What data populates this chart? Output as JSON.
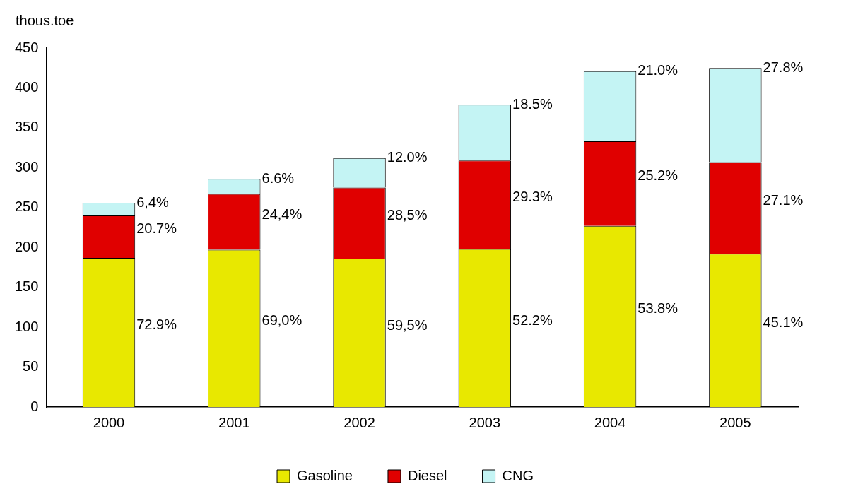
{
  "chart_data": {
    "type": "bar",
    "stacked": true,
    "ylabel": "thous.toe",
    "categories": [
      "2000",
      "2001",
      "2002",
      "2003",
      "2004",
      "2005"
    ],
    "series": [
      {
        "name": "Gasoline",
        "color": "#e8e800",
        "values": [
          187,
          197,
          186,
          198,
          227,
          192
        ]
      },
      {
        "name": "Diesel",
        "color": "#e00000",
        "values": [
          53,
          70,
          89,
          111,
          106,
          115
        ]
      },
      {
        "name": "CNG",
        "color": "#c4f4f4",
        "values": [
          16,
          19,
          37,
          70,
          88,
          118
        ]
      }
    ],
    "annotations": [
      "72.9%",
      "20.7%",
      "6,4%",
      "69,0%",
      "24,4%",
      "6.6%",
      "59,5%",
      "28,5%",
      "12.0%",
      "52.2%",
      "29.3%",
      "18.5%",
      "53.8%",
      "25.2%",
      "21.0%",
      "45.1%",
      "27.1%",
      "27.8%"
    ],
    "ylim": [
      0,
      450
    ],
    "yticks": [
      0,
      50,
      100,
      150,
      200,
      250,
      300,
      350,
      400,
      450
    ],
    "grid": false,
    "legend": "bottom"
  }
}
